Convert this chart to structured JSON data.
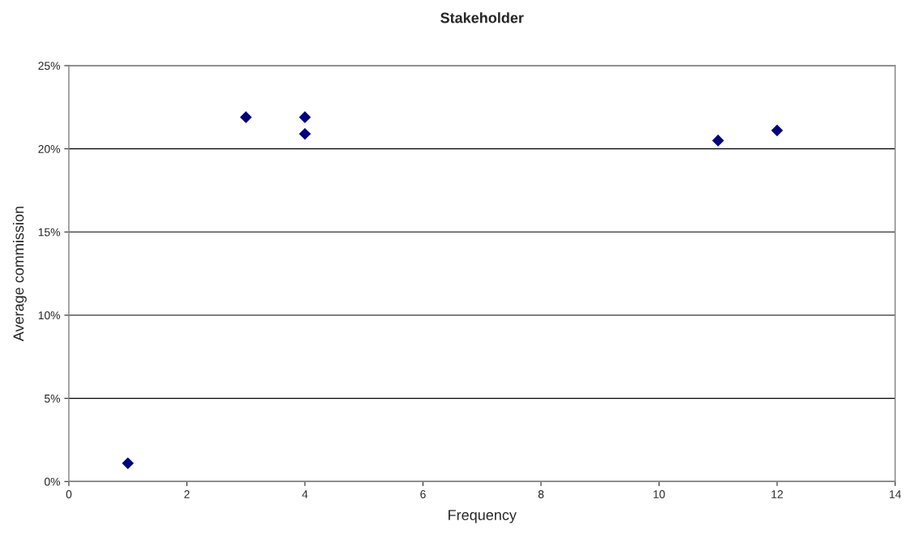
{
  "chart_data": {
    "type": "scatter",
    "title": "Stakeholder",
    "xlabel": "Frequency",
    "ylabel": "Average commission",
    "x": [
      1,
      3,
      4,
      4,
      11,
      12
    ],
    "values": [
      1.1,
      21.9,
      21.9,
      20.9,
      20.5,
      21.1
    ],
    "color": "#000080",
    "marker": "diamond",
    "grid": "y",
    "legend": false,
    "xlim": [
      0,
      14
    ],
    "xticks": [
      0,
      2,
      4,
      6,
      8,
      10,
      12,
      14
    ],
    "ylim": [
      0,
      25
    ],
    "yticks": [
      {
        "value": 0,
        "label": "0%"
      },
      {
        "value": 5,
        "label": "5%"
      },
      {
        "value": 10,
        "label": "10%"
      },
      {
        "value": 15,
        "label": "15%"
      },
      {
        "value": 20,
        "label": "20%"
      },
      {
        "value": 25,
        "label": "25%"
      }
    ]
  }
}
